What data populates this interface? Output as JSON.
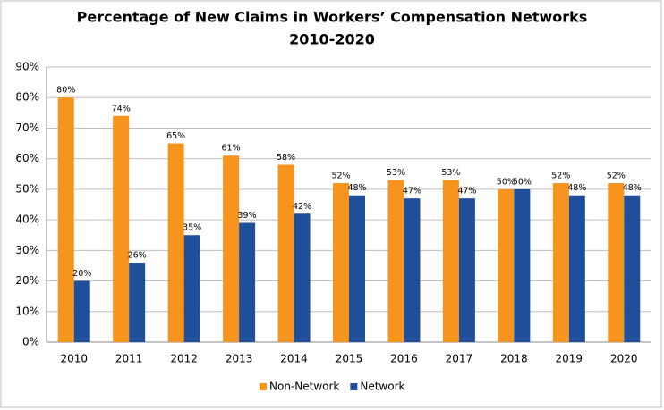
{
  "chart_data": {
    "type": "bar",
    "title": "Percentage of New Claims in Workers’ Compensation Networks",
    "subtitle": "2010-2020",
    "categories": [
      "2010",
      "2011",
      "2012",
      "2013",
      "2014",
      "2015",
      "2016",
      "2017",
      "2018",
      "2019",
      "2020"
    ],
    "series": [
      {
        "name": "Non-Network",
        "color": "#f7941d",
        "values": [
          80,
          74,
          65,
          61,
          58,
          52,
          53,
          53,
          50,
          52,
          52
        ],
        "value_labels": [
          "80%",
          "74%",
          "65%",
          "61%",
          "58%",
          "52%",
          "53%",
          "53%",
          "50%",
          "52%",
          "52%"
        ]
      },
      {
        "name": "Network",
        "color": "#1f4e9a",
        "values": [
          20,
          26,
          35,
          39,
          42,
          48,
          47,
          47,
          50,
          48,
          48
        ],
        "value_labels": [
          "20%",
          "26%",
          "35%",
          "39%",
          "42%",
          "48%",
          "47%",
          "47%",
          "50%",
          "48%",
          "48%"
        ]
      }
    ],
    "ylim": [
      0,
      90
    ],
    "yticks": [
      {
        "value": 0,
        "label": "0%"
      },
      {
        "value": 10,
        "label": "10%"
      },
      {
        "value": 20,
        "label": "20%"
      },
      {
        "value": 30,
        "label": "30%"
      },
      {
        "value": 40,
        "label": "40%"
      },
      {
        "value": 50,
        "label": "50%"
      },
      {
        "value": 60,
        "label": "60%"
      },
      {
        "value": 70,
        "label": "70%"
      },
      {
        "value": 80,
        "label": "80%"
      },
      {
        "value": 90,
        "label": "90%"
      }
    ],
    "grid": true,
    "legend": "bottom"
  }
}
